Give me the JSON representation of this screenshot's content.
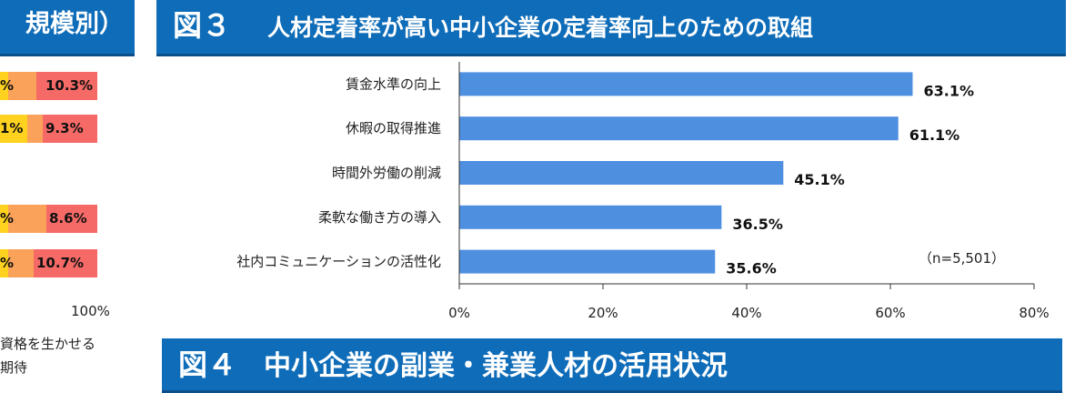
{
  "left_panel": {
    "banner_fragment": "規模別）",
    "rows": [
      {
        "prev_label": "%",
        "last_label": "10.3%"
      },
      {
        "prev_label": "1%",
        "last_label": "9.3%"
      },
      {
        "prev_label": "%",
        "last_label": "8.6%"
      },
      {
        "prev_label": "%",
        "last_label": "10.7%"
      }
    ],
    "axis_end_label": "100%",
    "legend_fragment_1": "資格を生かせる",
    "legend_fragment_2": "期待",
    "colors": {
      "yellow": "#ffd21f",
      "orange": "#fba25a",
      "red": "#f56a66"
    }
  },
  "figure3": {
    "number": "図３",
    "title": "人材定着率が高い中小企業の定着率向上のための取組"
  },
  "figure4": {
    "number": "図４",
    "title": "中小企業の副業・兼業人材の活用状況"
  },
  "chart_data": {
    "type": "bar",
    "orientation": "horizontal",
    "categories": [
      "賃金水準の向上",
      "休暇の取得推進",
      "時間外労働の削減",
      "柔軟な働き方の導入",
      "社内コミュニケーションの活性化"
    ],
    "values": [
      63.1,
      61.1,
      45.1,
      36.5,
      35.6
    ],
    "value_labels": [
      "63.1%",
      "61.1%",
      "45.1%",
      "36.5%",
      "35.6%"
    ],
    "xlim": [
      0,
      80
    ],
    "xticks": [
      0,
      20,
      40,
      60,
      80
    ],
    "xtick_labels": [
      "0%",
      "20%",
      "40%",
      "60%",
      "80%"
    ],
    "note": "（n=5,501）",
    "bar_color": "#4f8fe0",
    "grid": false
  }
}
